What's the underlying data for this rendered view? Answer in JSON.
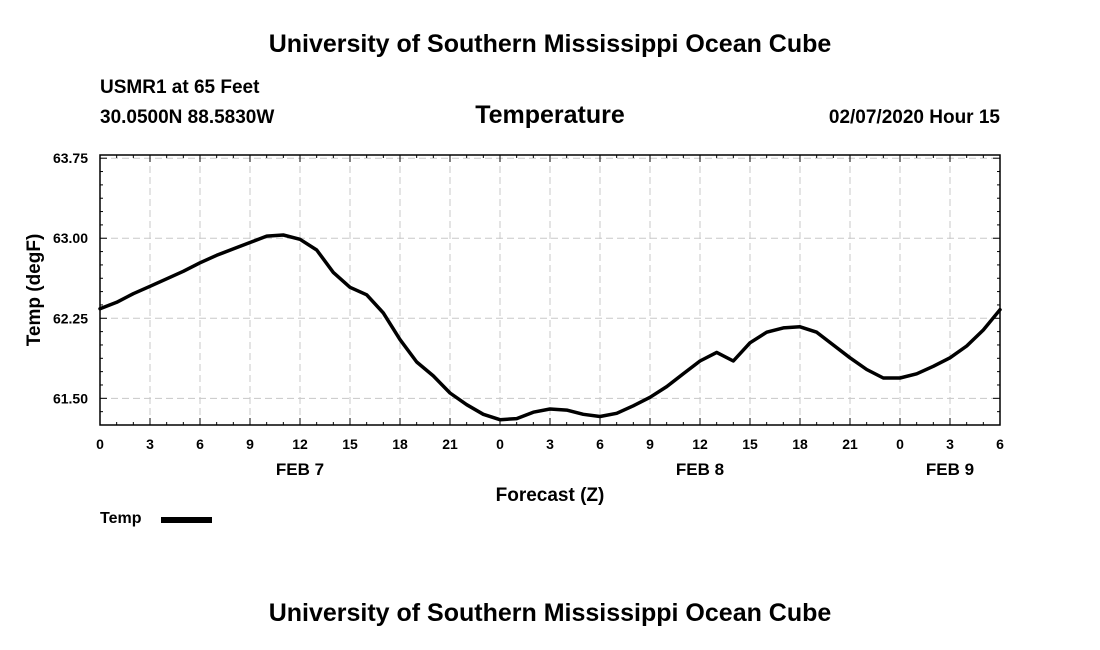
{
  "header": {
    "title": "University of Southern Mississippi Ocean Cube",
    "station": "USMR1 at 65 Feet",
    "coords": "30.0500N 88.5830W",
    "variable": "Temperature",
    "datetime": "02/07/2020 Hour 15"
  },
  "footer": {
    "title": "University of Southern Mississippi Ocean Cube"
  },
  "chart_data": {
    "type": "line",
    "title": "Temperature",
    "xlabel": "Forecast (Z)",
    "ylabel": "Temp (degF)",
    "xlim": [
      0,
      54
    ],
    "ylim": [
      61.25,
      63.78
    ],
    "yticks": [
      61.5,
      62.25,
      63.0,
      63.75
    ],
    "ytick_labels": [
      "61.50",
      "62.25",
      "63.00",
      "63.75"
    ],
    "xticks": [
      0,
      3,
      6,
      9,
      12,
      15,
      18,
      21,
      24,
      27,
      30,
      33,
      36,
      39,
      42,
      45,
      48,
      51,
      54
    ],
    "xtick_labels": [
      "0",
      "3",
      "6",
      "9",
      "12",
      "15",
      "18",
      "21",
      "0",
      "3",
      "6",
      "9",
      "12",
      "15",
      "18",
      "21",
      "0",
      "3",
      "6"
    ],
    "day_labels": [
      {
        "x": 12,
        "label": "FEB 7"
      },
      {
        "x": 36,
        "label": "FEB 8"
      },
      {
        "x": 51,
        "label": "FEB 9"
      }
    ],
    "grid": true,
    "legend_position": "bottom-left",
    "series": [
      {
        "name": "Temp",
        "color": "#000000",
        "x": [
          0,
          1,
          2,
          3,
          4,
          5,
          6,
          7,
          8,
          9,
          10,
          11,
          12,
          13,
          14,
          15,
          16,
          17,
          18,
          19,
          20,
          21,
          22,
          23,
          24,
          25,
          26,
          27,
          28,
          29,
          30,
          31,
          32,
          33,
          34,
          35,
          36,
          37,
          38,
          39,
          40,
          41,
          42,
          43,
          44,
          45,
          46,
          47,
          48,
          49,
          50,
          51,
          52,
          53,
          54
        ],
        "values": [
          62.34,
          62.4,
          62.48,
          62.55,
          62.62,
          62.69,
          62.77,
          62.84,
          62.9,
          62.96,
          63.02,
          63.03,
          62.99,
          62.89,
          62.68,
          62.54,
          62.47,
          62.3,
          62.05,
          61.84,
          61.71,
          61.55,
          61.44,
          61.35,
          61.3,
          61.31,
          61.37,
          61.4,
          61.39,
          61.35,
          61.33,
          61.36,
          61.43,
          61.51,
          61.61,
          61.73,
          61.85,
          61.93,
          61.85,
          62.02,
          62.12,
          62.16,
          62.17,
          62.12,
          62.0,
          61.88,
          61.77,
          61.69,
          61.69,
          61.73,
          61.8,
          61.88,
          61.99,
          62.14,
          62.33
        ]
      }
    ]
  }
}
